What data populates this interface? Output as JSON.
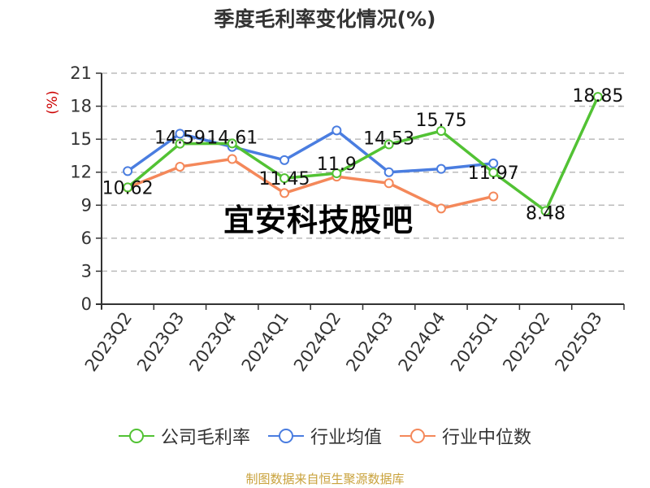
{
  "title": "季度毛利率变化情况(%)",
  "watermark": "宜安科技股吧",
  "source": "制图数据来自恒生聚源数据库",
  "colors": {
    "company": "#52c234",
    "industry_avg": "#4a7de0",
    "industry_median": "#f4885a",
    "source_text": "#c9a23c",
    "y_unit": "#cc0000"
  },
  "legend": [
    {
      "label": "公司毛利率",
      "color": "#52c234"
    },
    {
      "label": "行业均值",
      "color": "#4a7de0"
    },
    {
      "label": "行业中位数",
      "color": "#f4885a"
    }
  ],
  "chart_data": {
    "type": "line",
    "title": "季度毛利率变化情况(%)",
    "xlabel": "",
    "ylabel": "(%)",
    "ylim": [
      0,
      21
    ],
    "yticks": [
      0,
      3,
      6,
      9,
      12,
      15,
      18,
      21
    ],
    "grid": "horizontal dashed",
    "legend_position": "bottom",
    "categories": [
      "2023Q2",
      "2023Q3",
      "2023Q4",
      "2024Q1",
      "2024Q2",
      "2024Q3",
      "2024Q4",
      "2025Q1",
      "2025Q2",
      "2025Q3"
    ],
    "series": [
      {
        "name": "公司毛利率",
        "values": [
          10.62,
          14.59,
          14.61,
          11.45,
          11.9,
          14.53,
          15.75,
          11.97,
          8.48,
          18.85
        ],
        "labels_shown": true
      },
      {
        "name": "行业均值",
        "values": [
          12.1,
          15.5,
          14.3,
          13.1,
          15.8,
          12.0,
          12.3,
          12.8,
          null,
          null
        ]
      },
      {
        "name": "行业中位数",
        "values": [
          10.6,
          12.5,
          13.2,
          10.1,
          11.6,
          11.0,
          8.7,
          9.8,
          null,
          null
        ]
      }
    ]
  }
}
